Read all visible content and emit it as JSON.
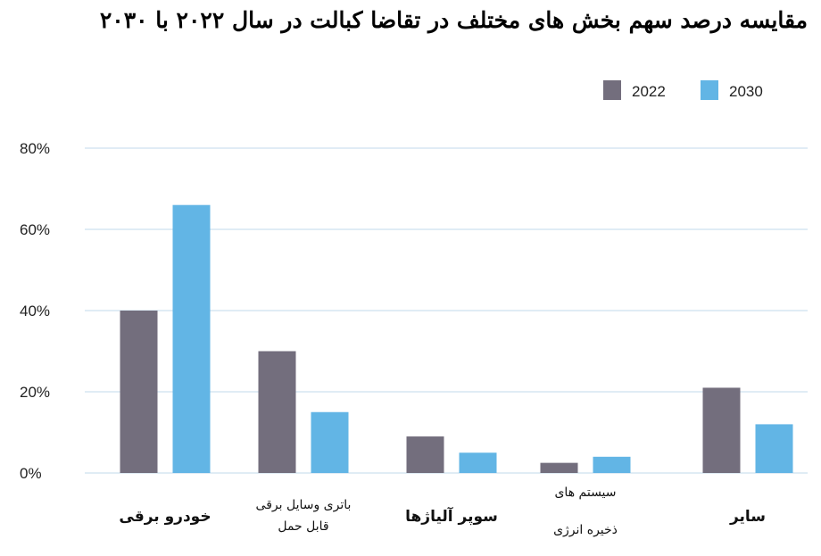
{
  "chart_data": {
    "type": "bar",
    "title": "مقایسه درصد سهم بخش های مختلف در تقاضا کبالت در سال ۲۰۲۲ با ۲۰۳۰",
    "categories": [
      [
        "خودرو برقی"
      ],
      [
        "باتری وسایل برقی",
        "قابل حمل"
      ],
      [
        "سوپر آلیاژها"
      ],
      [
        "سیستم های",
        "ذخیره انرژی"
      ],
      [
        "سایر"
      ]
    ],
    "series": [
      {
        "name": "2022",
        "color": "#736e7d",
        "values": [
          40,
          30,
          9,
          2.5,
          21
        ]
      },
      {
        "name": "2030",
        "color": "#62b5e5",
        "values": [
          66,
          15,
          5,
          4,
          12
        ]
      }
    ],
    "ylim": [
      0,
      80
    ],
    "yticks": [
      "0%",
      "20%",
      "40%",
      "60%",
      "80%"
    ],
    "ytick_values": [
      0,
      20,
      40,
      60,
      80
    ],
    "grid": true,
    "gridcolor": "#d6e6f2",
    "legend": "top-right",
    "xlabel": "",
    "ylabel": ""
  }
}
